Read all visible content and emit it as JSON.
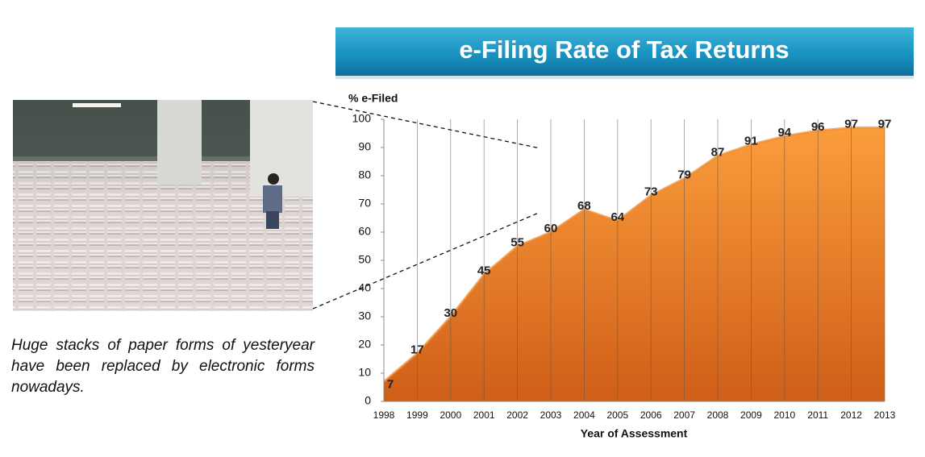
{
  "chart_data": {
    "type": "area",
    "title": "e-Filing Rate of Tax Returns",
    "y_label": "% e-Filed",
    "x_label": "Year of Assessment",
    "x": [
      1998,
      1999,
      2000,
      2001,
      2002,
      2003,
      2004,
      2005,
      2006,
      2007,
      2008,
      2009,
      2010,
      2011,
      2012,
      2013
    ],
    "values": [
      7,
      17,
      30,
      45,
      55,
      60,
      68,
      64,
      73,
      79,
      87,
      91,
      94,
      96,
      97,
      97
    ],
    "color": "#f08a2c",
    "xlim": [
      1998,
      2013
    ],
    "xticks": [
      1998,
      1999,
      2000,
      2001,
      2002,
      2003,
      2004,
      2005,
      2006,
      2007,
      2008,
      2009,
      2010,
      2011,
      2012,
      2013
    ],
    "ylim": [
      0,
      100
    ],
    "yticks": [
      0,
      10,
      20,
      30,
      40,
      50,
      60,
      70,
      80,
      90,
      100
    ],
    "grid": true
  },
  "caption": "Huge stacks of paper forms of yesteryear have been replaced by electronic forms nowadays."
}
